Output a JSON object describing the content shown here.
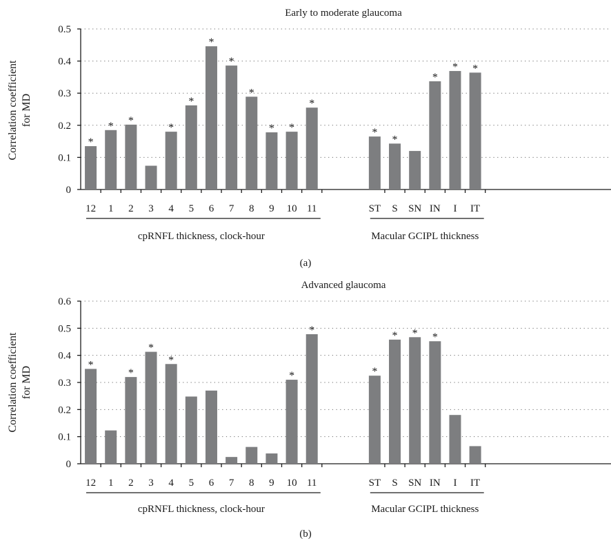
{
  "chart_data": [
    {
      "type": "bar",
      "title": "Early to moderate glaucoma",
      "ylabel": [
        "Correlation coefficient",
        "for MD"
      ],
      "ylim": [
        0,
        0.5
      ],
      "yticks": [
        "0",
        "0.1",
        "0.2",
        "0.3",
        "0.4",
        "0.5"
      ],
      "grid": true,
      "groups": [
        {
          "label": "cpRNFL   thickness, clock-hour",
          "categories": [
            "12",
            "1",
            "2",
            "3",
            "4",
            "5",
            "6",
            "7",
            "8",
            "9",
            "10",
            "11"
          ],
          "values": [
            0.135,
            0.185,
            0.202,
            0.074,
            0.18,
            0.262,
            0.446,
            0.386,
            0.289,
            0.178,
            0.18,
            0.255
          ],
          "significant": [
            true,
            true,
            true,
            false,
            true,
            true,
            true,
            true,
            true,
            true,
            true,
            true
          ]
        },
        {
          "label": "Macular GCIPL thickness",
          "categories": [
            "ST",
            "S",
            "SN",
            "IN",
            "I",
            "IT"
          ],
          "values": [
            0.165,
            0.143,
            0.12,
            0.337,
            0.369,
            0.364
          ],
          "significant": [
            true,
            true,
            false,
            true,
            true,
            true
          ]
        }
      ],
      "panel_label": "(a)",
      "marker": "*"
    },
    {
      "type": "bar",
      "title": "Advanced glaucoma",
      "ylabel": [
        "Correlation coefficient",
        "for MD"
      ],
      "ylim": [
        0,
        0.6
      ],
      "yticks": [
        "0",
        "0.1",
        "0.2",
        "0.3",
        "0.4",
        "0.5",
        "0.6"
      ],
      "grid": true,
      "groups": [
        {
          "label": "cpRNFL   thickness, clock-hour",
          "categories": [
            "12",
            "1",
            "2",
            "3",
            "4",
            "5",
            "6",
            "7",
            "8",
            "9",
            "10",
            "11"
          ],
          "values": [
            0.35,
            0.123,
            0.32,
            0.413,
            0.368,
            0.248,
            0.27,
            0.025,
            0.062,
            0.038,
            0.31,
            0.478
          ],
          "significant": [
            true,
            false,
            true,
            true,
            true,
            false,
            false,
            false,
            false,
            false,
            true,
            true
          ]
        },
        {
          "label": "Macular GCIPL thickness",
          "categories": [
            "ST",
            "S",
            "SN",
            "IN",
            "I",
            "IT"
          ],
          "values": [
            0.325,
            0.458,
            0.467,
            0.452,
            0.18,
            0.065
          ],
          "significant": [
            true,
            true,
            true,
            true,
            false,
            false
          ]
        }
      ],
      "panel_label": "(b)",
      "marker": "*"
    }
  ]
}
